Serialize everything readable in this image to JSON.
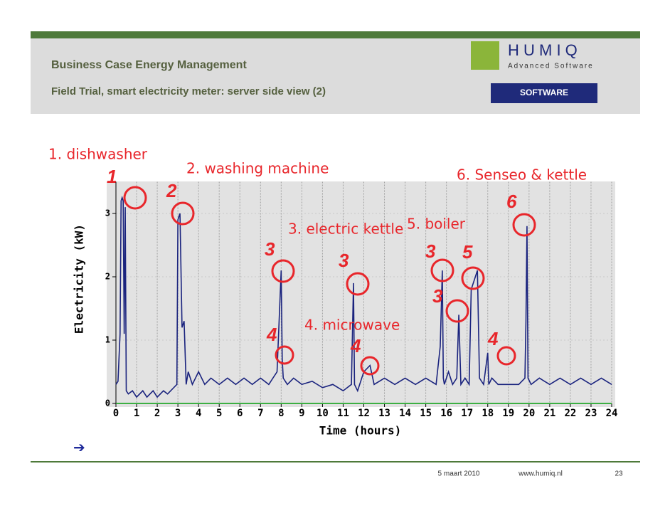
{
  "slide": {
    "title": "Business Case Energy Management",
    "subtitle": "Field Trial, smart electricity meter: server side view (2)",
    "logo": "H U M I Q",
    "logo_tagline": "Advanced Software",
    "logo2": "SOFTWARE",
    "bullet": "➔",
    "footer": {
      "date": "5 maart 2010",
      "url": "www.humiq.nl",
      "page": "23"
    }
  },
  "chart_data": {
    "type": "line",
    "x_label": "Time (hours)",
    "y_label": "Electricity (kW)",
    "x": [
      0,
      0.1,
      0.2,
      0.25,
      0.3,
      0.35,
      0.4,
      0.45,
      0.5,
      0.6,
      0.8,
      1.0,
      1.3,
      1.5,
      1.8,
      2.0,
      2.3,
      2.5,
      2.8,
      2.95,
      3.0,
      3.1,
      3.2,
      3.3,
      3.4,
      3.5,
      3.7,
      4.0,
      4.3,
      4.6,
      5.0,
      5.4,
      5.8,
      6.2,
      6.6,
      7.0,
      7.4,
      7.8,
      7.95,
      8.0,
      8.05,
      8.1,
      8.3,
      8.6,
      9.0,
      9.5,
      10.0,
      10.5,
      11.0,
      11.4,
      11.5,
      11.55,
      11.7,
      12.0,
      12.3,
      12.5,
      13.0,
      13.5,
      14.0,
      14.5,
      15.0,
      15.5,
      15.7,
      15.8,
      15.85,
      15.9,
      16.1,
      16.3,
      16.5,
      16.6,
      16.7,
      16.9,
      17.1,
      17.2,
      17.4,
      17.5,
      17.6,
      17.8,
      18.0,
      18.05,
      18.2,
      18.5,
      19.0,
      19.5,
      19.8,
      19.85,
      19.9,
      19.95,
      20.1,
      20.5,
      21.0,
      21.5,
      22.0,
      22.5,
      23.0,
      23.5,
      24.0
    ],
    "series": [
      {
        "name": "Electricity",
        "color": "#1a237e",
        "values": [
          0.3,
          0.35,
          1.1,
          3.2,
          3.25,
          3.2,
          1.1,
          3.1,
          0.2,
          0.15,
          0.2,
          0.1,
          0.2,
          0.1,
          0.2,
          0.1,
          0.2,
          0.15,
          0.25,
          0.3,
          2.9,
          3.0,
          1.2,
          1.3,
          0.3,
          0.5,
          0.3,
          0.5,
          0.3,
          0.4,
          0.3,
          0.4,
          0.3,
          0.4,
          0.3,
          0.4,
          0.3,
          0.5,
          1.7,
          2.1,
          0.7,
          0.4,
          0.3,
          0.4,
          0.3,
          0.35,
          0.25,
          0.3,
          0.2,
          0.3,
          1.9,
          0.3,
          0.2,
          0.5,
          0.6,
          0.3,
          0.4,
          0.3,
          0.4,
          0.3,
          0.4,
          0.3,
          0.9,
          2.1,
          0.4,
          0.3,
          0.5,
          0.3,
          0.4,
          1.4,
          0.3,
          0.4,
          0.3,
          1.8,
          2.0,
          2.1,
          0.4,
          0.3,
          0.8,
          0.3,
          0.4,
          0.3,
          0.3,
          0.3,
          0.4,
          1.3,
          2.8,
          0.4,
          0.3,
          0.4,
          0.3,
          0.4,
          0.3,
          0.4,
          0.3,
          0.4,
          0.3
        ]
      }
    ],
    "xlim": [
      0,
      24
    ],
    "ylim": [
      0,
      3.5
    ],
    "xticks": [
      0,
      1,
      2,
      3,
      4,
      5,
      6,
      7,
      8,
      9,
      10,
      11,
      12,
      13,
      14,
      15,
      16,
      17,
      18,
      19,
      20,
      21,
      22,
      23,
      24
    ],
    "yticks": [
      0,
      1,
      2,
      3
    ],
    "grid": true,
    "annotations": [
      "1. dishwasher",
      "2. washing machine",
      "3. electric kettle",
      "4. microwave",
      "5. boiler",
      "6. Senseo & kettle"
    ],
    "markers": [
      "1",
      "2",
      "3",
      "3",
      "3",
      "3",
      "4",
      "4",
      "4",
      "5",
      "6"
    ]
  }
}
